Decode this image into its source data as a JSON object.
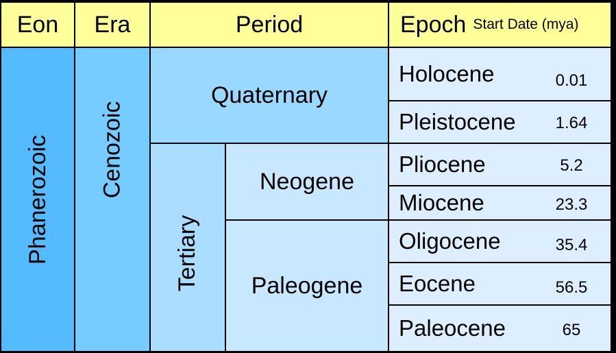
{
  "headers": {
    "eon": "Eon",
    "era": "Era",
    "period": "Period",
    "epoch": "Epoch",
    "epoch_sub": "Start Date (mya)"
  },
  "eon": "Phanerozoic",
  "era": "Cenozoic",
  "periods": {
    "quaternary": "Quaternary",
    "tertiary": "Tertiary",
    "neogene": "Neogene",
    "paleogene": "Paleogene"
  },
  "epochs": [
    {
      "name": "Holocene",
      "start": "0.01"
    },
    {
      "name": "Pleistocene",
      "start": "1.64"
    },
    {
      "name": "Pliocene",
      "start": "5.2"
    },
    {
      "name": "Miocene",
      "start": "23.3"
    },
    {
      "name": "Oligocene",
      "start": "35.4"
    },
    {
      "name": "Eocene",
      "start": "56.5"
    },
    {
      "name": "Paleocene",
      "start": "65"
    }
  ],
  "colors": {
    "header": "#ffff99",
    "eon": "#55bbff",
    "era": "#77ccff",
    "quaternary": "#99d8ff",
    "tertiary": "#aaddff",
    "subperiod": "#c8e8ff",
    "epoch": "#ddeeff"
  }
}
